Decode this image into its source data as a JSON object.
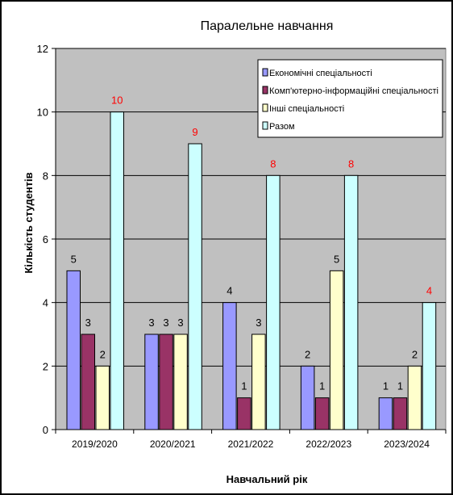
{
  "chart_data": {
    "type": "bar",
    "title": "Паралельне навчання",
    "xlabel": "Навчальний рік",
    "ylabel": "Кількість студентів",
    "categories": [
      "2019/2020",
      "2020/2021",
      "2021/2022",
      "2022/2023",
      "2023/2024"
    ],
    "series": [
      {
        "name": "Економічні спеціальності",
        "values": [
          5,
          3,
          4,
          2,
          1
        ],
        "color": "#9999ff"
      },
      {
        "name": "Комп'ютерно-інформаційні спеціальності",
        "values": [
          3,
          3,
          1,
          1,
          1
        ],
        "color": "#993366"
      },
      {
        "name": "Інші спеціальності",
        "values": [
          2,
          3,
          3,
          5,
          2
        ],
        "color": "#ffffcc"
      },
      {
        "name": "Разом",
        "values": [
          10,
          9,
          8,
          8,
          4
        ],
        "color": "#ccffff"
      }
    ],
    "ylim": [
      0,
      12
    ],
    "yticks": [
      0,
      2,
      4,
      6,
      8,
      10,
      12
    ],
    "grid": true,
    "legend": "top-right",
    "plot_background": "#c0c0c0",
    "total_label_color": "#ff0000",
    "label_color": "#000000"
  }
}
